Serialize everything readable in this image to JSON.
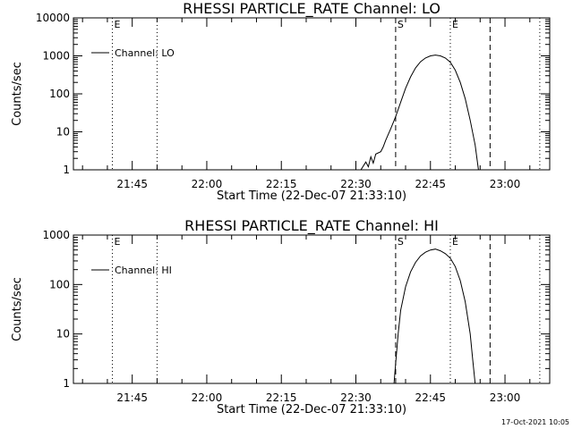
{
  "timestamp": "17-Oct-2021 10:05",
  "chart_data": [
    {
      "type": "line",
      "title": "RHESSI PARTICLE_RATE Channel: LO",
      "xlabel": "Start Time (22-Dec-07 21:33:10)",
      "ylabel": "Counts/sec",
      "y_scale": "log",
      "ylim": [
        1,
        10000
      ],
      "y_ticks": [
        {
          "value": 1,
          "label": "1"
        },
        {
          "value": 10,
          "label": "10"
        },
        {
          "value": 100,
          "label": "100"
        },
        {
          "value": 1000,
          "label": "1000"
        },
        {
          "value": 10000,
          "label": "10000"
        }
      ],
      "xlim": [
        "21:33:10",
        "23:09:00"
      ],
      "x_ticks": [
        "21:45",
        "22:00",
        "22:15",
        "22:30",
        "22:45",
        "23:00"
      ],
      "markers": [
        {
          "time": "21:41:00",
          "style": "dotted",
          "label": "E"
        },
        {
          "time": "21:50:00",
          "style": "dotted",
          "label": ""
        },
        {
          "time": "22:38:00",
          "style": "dashed",
          "label": "S"
        },
        {
          "time": "22:49:00",
          "style": "dotted",
          "label": "E"
        },
        {
          "time": "22:57:00",
          "style": "dashed",
          "label": ""
        },
        {
          "time": "23:07:00",
          "style": "dotted",
          "label": ""
        }
      ],
      "legend": {
        "position": "top-left"
      },
      "series": [
        {
          "name": "Channel: LO",
          "points": [
            {
              "t": "22:31:00",
              "v": 1.0
            },
            {
              "t": "22:32:00",
              "v": 1.6
            },
            {
              "t": "22:32:30",
              "v": 1.2
            },
            {
              "t": "22:33:00",
              "v": 2.2
            },
            {
              "t": "22:33:30",
              "v": 1.5
            },
            {
              "t": "22:34:00",
              "v": 2.6
            },
            {
              "t": "22:35:00",
              "v": 3.0
            },
            {
              "t": "22:35:30",
              "v": 4.0
            },
            {
              "t": "22:36:00",
              "v": 6.0
            },
            {
              "t": "22:37:00",
              "v": 12
            },
            {
              "t": "22:38:00",
              "v": 25
            },
            {
              "t": "22:39:00",
              "v": 60
            },
            {
              "t": "22:40:00",
              "v": 140
            },
            {
              "t": "22:41:00",
              "v": 280
            },
            {
              "t": "22:42:00",
              "v": 480
            },
            {
              "t": "22:43:00",
              "v": 700
            },
            {
              "t": "22:44:00",
              "v": 880
            },
            {
              "t": "22:45:00",
              "v": 1000
            },
            {
              "t": "22:46:00",
              "v": 1050
            },
            {
              "t": "22:47:00",
              "v": 1000
            },
            {
              "t": "22:48:00",
              "v": 880
            },
            {
              "t": "22:49:00",
              "v": 680
            },
            {
              "t": "22:50:00",
              "v": 420
            },
            {
              "t": "22:51:00",
              "v": 200
            },
            {
              "t": "22:52:00",
              "v": 75
            },
            {
              "t": "22:53:00",
              "v": 20
            },
            {
              "t": "22:54:00",
              "v": 4.5
            },
            {
              "t": "22:54:40",
              "v": 1.0
            }
          ]
        }
      ]
    },
    {
      "type": "line",
      "title": "RHESSI PARTICLE_RATE Channel: HI",
      "xlabel": "Start Time (22-Dec-07 21:33:10)",
      "ylabel": "Counts/sec",
      "y_scale": "log",
      "ylim": [
        1,
        1000
      ],
      "y_ticks": [
        {
          "value": 1,
          "label": "1"
        },
        {
          "value": 10,
          "label": "10"
        },
        {
          "value": 100,
          "label": "100"
        },
        {
          "value": 1000,
          "label": "1000"
        }
      ],
      "xlim": [
        "21:33:10",
        "23:09:00"
      ],
      "x_ticks": [
        "21:45",
        "22:00",
        "22:15",
        "22:30",
        "22:45",
        "23:00"
      ],
      "markers": [
        {
          "time": "21:41:00",
          "style": "dotted",
          "label": "E"
        },
        {
          "time": "21:50:00",
          "style": "dotted",
          "label": ""
        },
        {
          "time": "22:38:00",
          "style": "dashed",
          "label": "S"
        },
        {
          "time": "22:49:00",
          "style": "dotted",
          "label": "E"
        },
        {
          "time": "22:57:00",
          "style": "dashed",
          "label": ""
        },
        {
          "time": "23:07:00",
          "style": "dotted",
          "label": ""
        }
      ],
      "legend": {
        "position": "top-left"
      },
      "series": [
        {
          "name": "Channel: HI",
          "points": [
            {
              "t": "22:37:40",
              "v": 1.0
            },
            {
              "t": "22:38:00",
              "v": 2.5
            },
            {
              "t": "22:38:30",
              "v": 10
            },
            {
              "t": "22:39:00",
              "v": 30
            },
            {
              "t": "22:40:00",
              "v": 90
            },
            {
              "t": "22:41:00",
              "v": 180
            },
            {
              "t": "22:42:00",
              "v": 280
            },
            {
              "t": "22:43:00",
              "v": 380
            },
            {
              "t": "22:44:00",
              "v": 450
            },
            {
              "t": "22:45:00",
              "v": 500
            },
            {
              "t": "22:46:00",
              "v": 520
            },
            {
              "t": "22:47:00",
              "v": 480
            },
            {
              "t": "22:48:00",
              "v": 420
            },
            {
              "t": "22:49:00",
              "v": 340
            },
            {
              "t": "22:50:00",
              "v": 230
            },
            {
              "t": "22:51:00",
              "v": 120
            },
            {
              "t": "22:52:00",
              "v": 45
            },
            {
              "t": "22:53:00",
              "v": 10
            },
            {
              "t": "22:53:30",
              "v": 3.0
            },
            {
              "t": "22:54:00",
              "v": 1.0
            }
          ]
        }
      ]
    }
  ]
}
